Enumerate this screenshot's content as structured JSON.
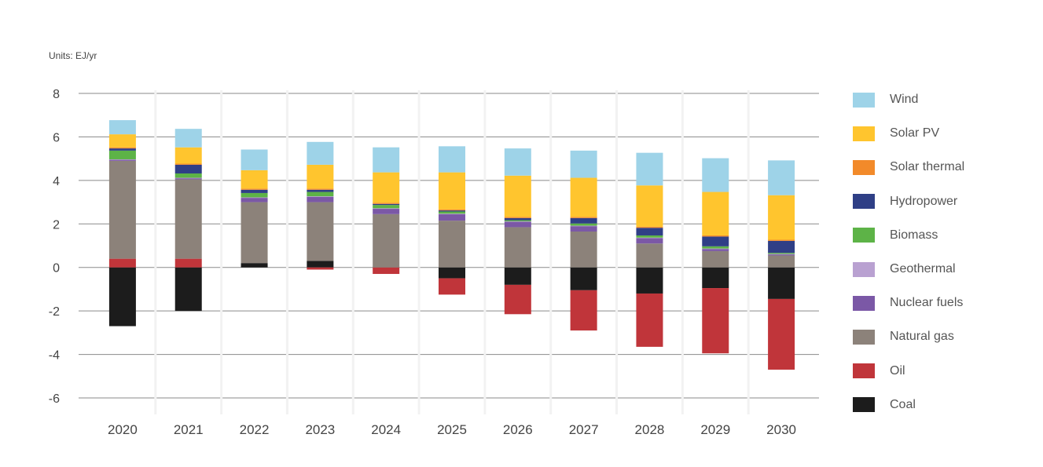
{
  "chart_data": {
    "type": "bar",
    "stacked": true,
    "units": "Units: EJ/yr",
    "categories": [
      "2020",
      "2021",
      "2022",
      "2023",
      "2024",
      "2025",
      "2026",
      "2027",
      "2028",
      "2029",
      "2030"
    ],
    "ylim": [
      -6,
      8
    ],
    "yticks": [
      8,
      6,
      4,
      2,
      0,
      -2,
      -4,
      -6
    ],
    "ytick_labels": [
      "8",
      "6",
      "4",
      "2",
      "0",
      "-2",
      "-4",
      "-6"
    ],
    "grid": true,
    "legend_position": "right",
    "series": [
      {
        "name": "Coal",
        "color": "#1c1c1c",
        "values": [
          -2.7,
          -2.0,
          0.2,
          0.3,
          0.0,
          -0.5,
          -0.8,
          -1.05,
          -1.2,
          -0.95,
          -1.45
        ]
      },
      {
        "name": "Oil",
        "color": "#c0353a",
        "values": [
          0.4,
          0.4,
          0.0,
          -0.1,
          -0.3,
          -0.75,
          -1.35,
          -1.85,
          -2.45,
          -3.0,
          -3.25
        ]
      },
      {
        "name": "Natural gas",
        "color": "#8c827a",
        "values": [
          4.5,
          3.65,
          2.8,
          2.7,
          2.45,
          2.15,
          1.85,
          1.65,
          1.1,
          0.75,
          0.55
        ]
      },
      {
        "name": "Nuclear fuels",
        "color": "#7b58a6",
        "values": [
          0.05,
          0.05,
          0.2,
          0.25,
          0.25,
          0.3,
          0.25,
          0.25,
          0.25,
          0.1,
          0.05
        ]
      },
      {
        "name": "Geothermal",
        "color": "#b9a1d1",
        "values": [
          0.02,
          0.02,
          0.02,
          0.02,
          0.02,
          0.02,
          0.02,
          0.02,
          0.02,
          0.02,
          0.02
        ]
      },
      {
        "name": "Biomass",
        "color": "#5db347",
        "values": [
          0.4,
          0.2,
          0.2,
          0.2,
          0.15,
          0.1,
          0.05,
          0.1,
          0.1,
          0.1,
          0.05
        ]
      },
      {
        "name": "Hydropower",
        "color": "#2f3f86",
        "values": [
          0.1,
          0.4,
          0.15,
          0.1,
          0.05,
          0.05,
          0.1,
          0.25,
          0.35,
          0.45,
          0.55
        ]
      },
      {
        "name": "Solar thermal",
        "color": "#f28a2a",
        "values": [
          0.05,
          0.05,
          0.05,
          0.05,
          0.05,
          0.05,
          0.05,
          0.05,
          0.05,
          0.05,
          0.05
        ]
      },
      {
        "name": "Solar PV",
        "color": "#ffc52e",
        "values": [
          0.6,
          0.75,
          0.85,
          1.1,
          1.4,
          1.7,
          1.9,
          1.8,
          1.9,
          2.0,
          2.05
        ]
      },
      {
        "name": "Wind",
        "color": "#9ed3e8",
        "values": [
          0.65,
          0.85,
          0.95,
          1.05,
          1.15,
          1.2,
          1.25,
          1.25,
          1.5,
          1.55,
          1.6
        ]
      }
    ],
    "legend_order": [
      "Wind",
      "Solar PV",
      "Solar thermal",
      "Hydropower",
      "Biomass",
      "Geothermal",
      "Nuclear fuels",
      "Natural gas",
      "Oil",
      "Coal"
    ]
  }
}
